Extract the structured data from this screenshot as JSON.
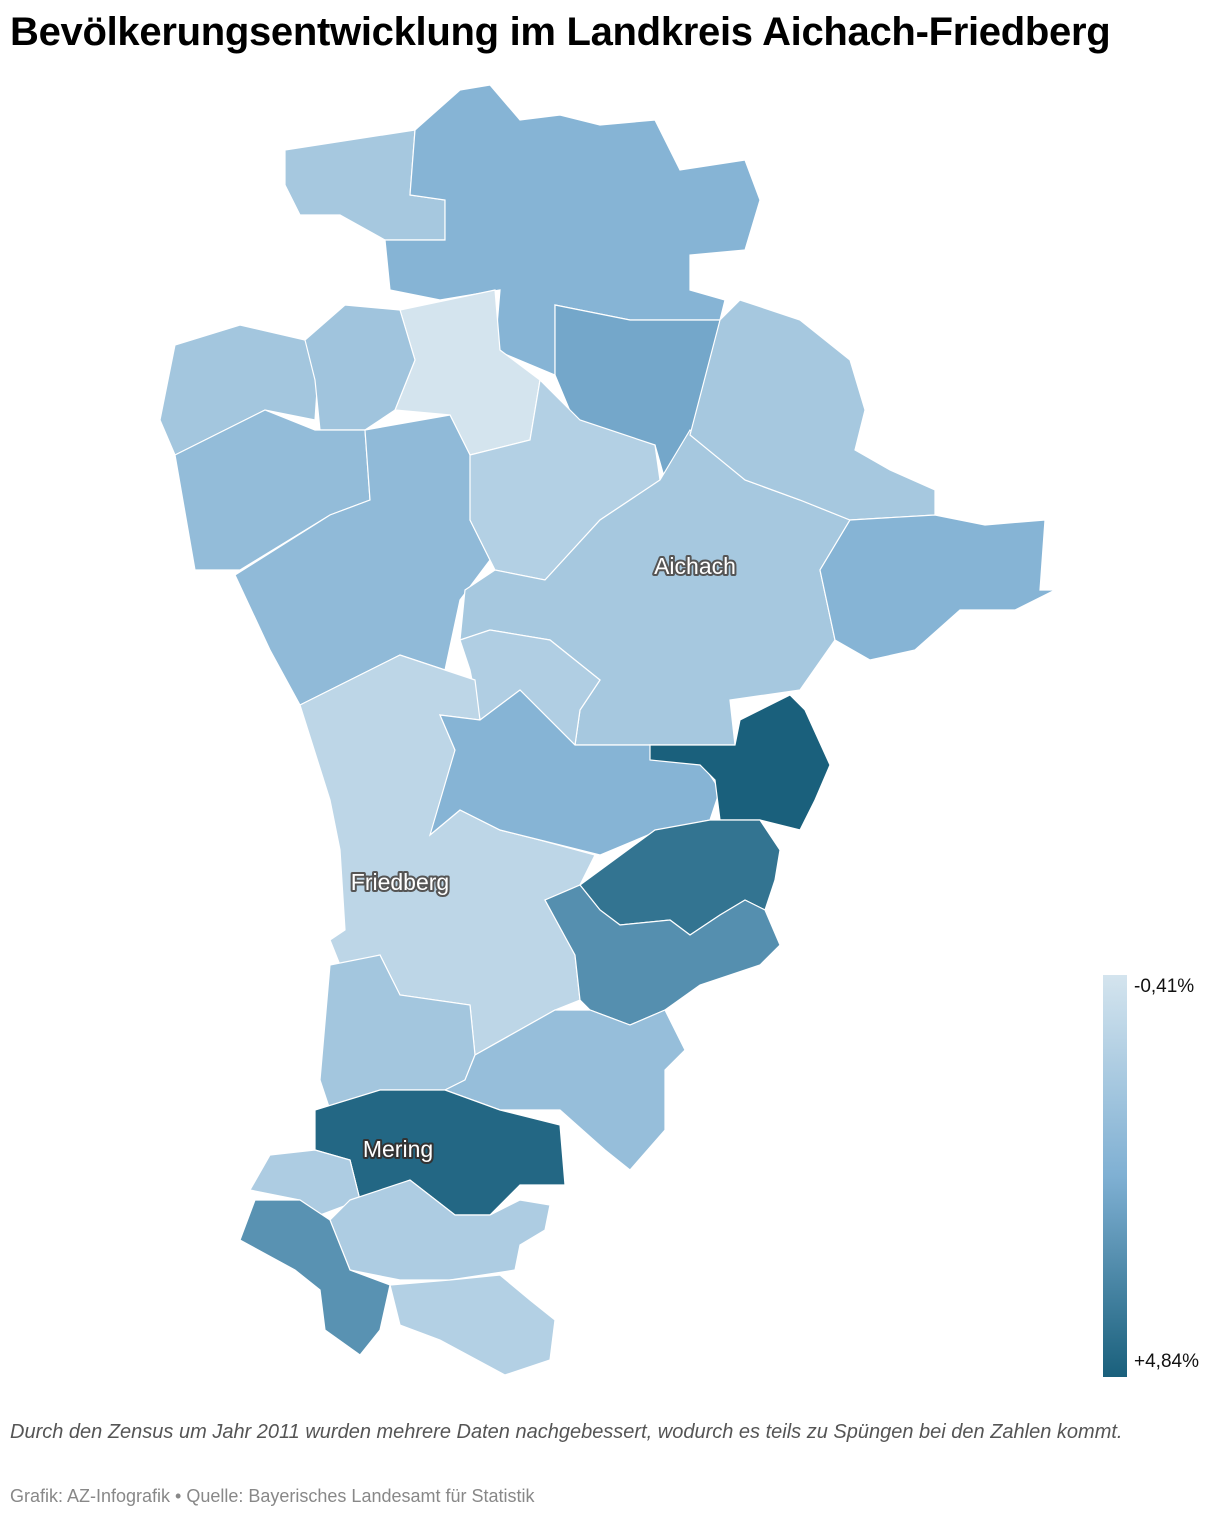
{
  "title": "Bevölkerungsentwicklung im Landkreis Aichach-Friedberg",
  "map": {
    "region_values": [
      1.0,
      2.0,
      2.5,
      -0.41,
      1.1,
      1.2,
      1.6,
      1.7,
      0.6,
      1.0,
      1.0,
      2.0,
      0.7,
      0.3,
      2.0,
      4.84,
      4.2,
      3.3,
      1.1,
      1.5,
      4.6,
      0.8,
      0.8,
      3.2,
      0.6
    ],
    "place_labels": [
      "Aichach",
      "Friedberg",
      "Mering"
    ],
    "color_scale": [
      "#d4e4ee",
      "#7fb0d3",
      "#1a607c"
    ],
    "border_color": "#ffffff"
  },
  "legend": {
    "min": {
      "value": -0.41,
      "label": "-0,41%"
    },
    "max": {
      "value": 4.84,
      "label": "+4,84%"
    }
  },
  "footer": {
    "note": "Durch den Zensus um Jahr 2011 wurden mehrere Daten nachgebessert, wodurch es teils zu Spüngen bei den Zahlen kommt.",
    "source": "Grafik: AZ-Infografik • Quelle: Bayerisches Landesamt für Statistik"
  }
}
